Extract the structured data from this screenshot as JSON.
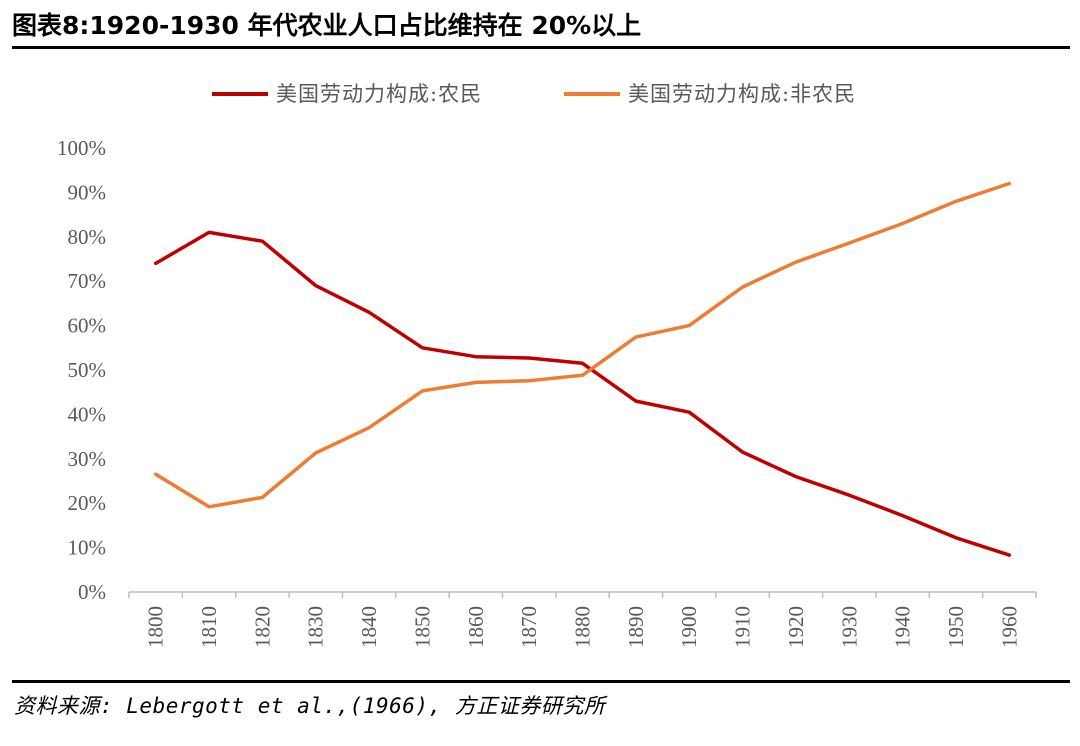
{
  "title": "图表8:1920-1930 年代农业人口占比维持在 20%以上",
  "source": "资料来源: Lebergott et al.,(1966), 方正证券研究所",
  "colors": {
    "farm": "#C00000",
    "nonfarm": "#ED7D31",
    "axis": "#BFBFBF",
    "tick": "#595959"
  },
  "chart_data": {
    "type": "line",
    "categories": [
      "1800",
      "1810",
      "1820",
      "1830",
      "1840",
      "1850",
      "1860",
      "1870",
      "1880",
      "1890",
      "1900",
      "1910",
      "1920",
      "1930",
      "1940",
      "1950",
      "1960"
    ],
    "series": [
      {
        "name": "美国劳动力构成:农民",
        "values": [
          74,
          81,
          79,
          69,
          63,
          55,
          53,
          52.7,
          51.5,
          43,
          40.5,
          31.5,
          26,
          21.8,
          17.2,
          12.2,
          8.3
        ]
      },
      {
        "name": "美国劳动力构成:非农民",
        "values": [
          26.5,
          19.2,
          21.3,
          31.3,
          37,
          45.3,
          47.2,
          47.6,
          48.8,
          57.4,
          60,
          68.7,
          74.3,
          78.6,
          83,
          88,
          92
        ]
      }
    ],
    "y_ticks": [
      "0%",
      "10%",
      "20%",
      "30%",
      "40%",
      "50%",
      "60%",
      "70%",
      "80%",
      "90%",
      "100%"
    ],
    "ylim": [
      0,
      100
    ],
    "legend_position": "top",
    "grid": false
  }
}
